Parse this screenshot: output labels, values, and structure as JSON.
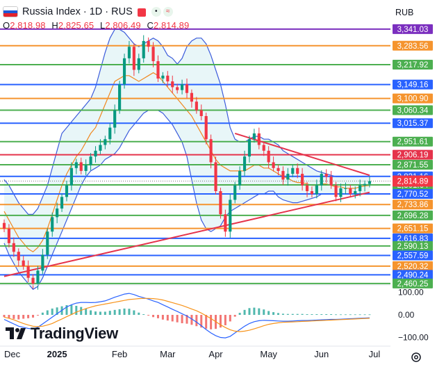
{
  "header": {
    "title": "Russia Index · 1D · RUS",
    "ohlc": [
      {
        "key": "O",
        "value": "2,818.98"
      },
      {
        "key": "H",
        "value": "2,825.65"
      },
      {
        "key": "L",
        "value": "2,806.49"
      },
      {
        "key": "C",
        "value": "2,814.89"
      }
    ],
    "currency": "RUB",
    "flag_colors": [
      "#ffffff",
      "#1c57d6",
      "#e2222c"
    ]
  },
  "branding": {
    "name": "TradingView",
    "settings_icon": "gear-icon"
  },
  "colors": {
    "candle_up": "#089981",
    "candle_down": "#f23645",
    "bb_band": "#3b5bdb",
    "bb_fill": "#e8f6f8",
    "basis": "#f0871e",
    "trendline": "#e5334b",
    "current_price": "#7a7a7a",
    "macd": "#2962ff",
    "signal": "#f7931a"
  },
  "chart_data": [
    {
      "type": "candlestick",
      "title": "Russia Index · 1D · RUS",
      "x_ticks": [
        "Dec",
        "2025",
        "Feb",
        "Mar",
        "Apr",
        "May",
        "Jun",
        "Jul"
      ],
      "y_scale": {
        "min": 2460,
        "max": 3360
      },
      "last_price": 2814.89,
      "levels": [
        {
          "value": 3341.03,
          "label": "3,341.03",
          "color": "#7b2fbf"
        },
        {
          "value": 3283.56,
          "label": "3,283.56",
          "color": "#f5942e"
        },
        {
          "value": 3217.92,
          "label": "3,217.92",
          "color": "#4caf50"
        },
        {
          "value": 3149.16,
          "label": "3,149.16",
          "color": "#2962ff"
        },
        {
          "value": 3100.9,
          "label": "3,100.90",
          "color": "#f5942e"
        },
        {
          "value": 3060.34,
          "label": "3,060.34",
          "color": "#4caf50"
        },
        {
          "value": 3015.37,
          "label": "3,015.37",
          "color": "#2962ff"
        },
        {
          "value": 2951.61,
          "label": "2,951.61",
          "color": "#4caf50"
        },
        {
          "value": 2906.19,
          "label": "2,906.19",
          "color": "#e5334b"
        },
        {
          "value": 2871.55,
          "label": "2,871.55",
          "color": "#4caf50"
        },
        {
          "value": 2831.16,
          "label": "2,831.16",
          "color": "#2962ff"
        },
        {
          "value": 2801.64,
          "label": "2,801.64",
          "color": "#4caf50"
        },
        {
          "value": 2770.52,
          "label": "2,770.52",
          "color": "#2962ff"
        },
        {
          "value": 2733.86,
          "label": "2,733.86",
          "color": "#f5942e"
        },
        {
          "value": 2696.28,
          "label": "2,696.28",
          "color": "#4caf50"
        },
        {
          "value": 2651.15,
          "label": "2,651.15",
          "color": "#f5942e"
        },
        {
          "value": 2616.83,
          "label": "2,616.83",
          "color": "#2962ff"
        },
        {
          "value": 2590.13,
          "label": "2,590.13",
          "color": "#4caf50"
        },
        {
          "value": 2557.59,
          "label": "2,557.59",
          "color": "#2962ff"
        },
        {
          "value": 2520.32,
          "label": "2,520.32",
          "color": "#f5942e"
        },
        {
          "value": 2490.24,
          "label": "2,490.24",
          "color": "#2962ff"
        },
        {
          "value": 2460.25,
          "label": "2,460.25",
          "color": "#4caf50"
        }
      ],
      "close_series": [
        2650,
        2600,
        2570,
        2540,
        2520,
        2480,
        2460,
        2505,
        2560,
        2640,
        2690,
        2720,
        2760,
        2800,
        2860,
        2880,
        2850,
        2870,
        2900,
        2920,
        2940,
        2960,
        3000,
        3060,
        3150,
        3240,
        3280,
        3200,
        3240,
        3300,
        3280,
        3230,
        3170,
        3180,
        3160,
        3140,
        3130,
        3150,
        3120,
        3090,
        3060,
        3040,
        2960,
        2880,
        2780,
        2700,
        2640,
        2750,
        2800,
        2850,
        2900,
        2960,
        2980,
        2940,
        2920,
        2880,
        2860,
        2850,
        2820,
        2840,
        2860,
        2840,
        2800,
        2780,
        2770,
        2800,
        2840,
        2830,
        2800,
        2760,
        2790,
        2790,
        2770,
        2780,
        2800,
        2805,
        2815
      ],
      "series": [
        {
          "name": "bb_upper",
          "values": [
            2820,
            2800,
            2770,
            2740,
            2720,
            2700,
            2700,
            2720,
            2760,
            2800,
            2860,
            2920,
            2980,
            3000,
            3020,
            3040,
            3060,
            3080,
            3100,
            3140,
            3200,
            3260,
            3310,
            3340,
            3340,
            3330,
            3310,
            3290,
            3280,
            3290,
            3300,
            3310,
            3300,
            3280,
            3250,
            3240,
            3220,
            3240,
            3280,
            3300,
            3310,
            3310,
            3290,
            3250,
            3200,
            3150,
            3080,
            3000,
            2960,
            2950,
            2950,
            2960,
            2970,
            2970,
            2960,
            2960,
            2950,
            2940,
            2920,
            2910,
            2900,
            2890,
            2880,
            2870,
            2860,
            2850,
            2845,
            2840,
            2835,
            2830,
            2830,
            2830,
            2830,
            2830,
            2830,
            2830,
            2831
          ]
        },
        {
          "name": "bb_lower",
          "values": [
            2600,
            2560,
            2530,
            2500,
            2480,
            2460,
            2440,
            2450,
            2480,
            2520,
            2560,
            2600,
            2640,
            2680,
            2720,
            2760,
            2800,
            2830,
            2850,
            2860,
            2870,
            2890,
            2900,
            2910,
            2930,
            2960,
            2990,
            3010,
            3030,
            3050,
            3060,
            3060,
            3060,
            3050,
            3030,
            3010,
            2980,
            2950,
            2900,
            2820,
            2740,
            2680,
            2650,
            2640,
            2650,
            2660,
            2690,
            2710,
            2720,
            2730,
            2740,
            2750,
            2760,
            2770,
            2770,
            2780,
            2780,
            2760,
            2750,
            2745,
            2740,
            2740,
            2745,
            2750,
            2755,
            2760,
            2770,
            2770,
            2770,
            2770,
            2770,
            2770,
            2770,
            2770,
            2770,
            2770,
            2770
          ]
        },
        {
          "name": "basis",
          "values": [
            2710,
            2680,
            2650,
            2620,
            2600,
            2580,
            2570,
            2585,
            2610,
            2650,
            2700,
            2750,
            2800,
            2840,
            2870,
            2900,
            2920,
            2950,
            2980,
            3000,
            3040,
            3080,
            3120,
            3160,
            3170,
            3180,
            3180,
            3170,
            3160,
            3170,
            3180,
            3190,
            3180,
            3160,
            3140,
            3120,
            3100,
            3080,
            3060,
            3040,
            3010,
            2980,
            2950,
            2920,
            2890,
            2870,
            2860,
            2850,
            2850,
            2850,
            2850,
            2860,
            2870,
            2870,
            2860,
            2860,
            2850,
            2840,
            2830,
            2825,
            2815,
            2810,
            2810,
            2805,
            2800,
            2800,
            2805,
            2805,
            2800,
            2795,
            2795,
            2790,
            2790,
            2790,
            2795,
            2798,
            2800
          ]
        }
      ],
      "trendlines": [
        {
          "from": {
            "bar": 0,
            "value": 2485
          },
          "to": {
            "bar": 76,
            "value": 2776
          }
        },
        {
          "from": {
            "bar": 48,
            "value": 2980
          },
          "to": {
            "bar": 76,
            "value": 2835
          }
        }
      ]
    },
    {
      "type": "line",
      "title": "",
      "y_ticks": [
        "100.00",
        "0.00",
        "−100.00"
      ],
      "ylim": [
        -120,
        120
      ],
      "series": [
        {
          "name": "macd",
          "values": [
            -20,
            -30,
            -40,
            -50,
            -55,
            -60,
            -62,
            -55,
            -40,
            -25,
            -10,
            5,
            20,
            35,
            45,
            52,
            55,
            55,
            54,
            55,
            58,
            62,
            70,
            78,
            85,
            92,
            95,
            90,
            82,
            76,
            70,
            62,
            55,
            45,
            35,
            25,
            15,
            5,
            -5,
            -18,
            -32,
            -48,
            -65,
            -80,
            -92,
            -100,
            -102,
            -95,
            -80,
            -65,
            -50,
            -38,
            -30,
            -26,
            -24,
            -25,
            -26,
            -27,
            -28,
            -28,
            -27,
            -26,
            -25,
            -25,
            -24,
            -23,
            -22,
            -21,
            -20,
            -20,
            -19,
            -18,
            -17,
            -16,
            -15,
            -14,
            -13
          ]
        },
        {
          "name": "signal",
          "values": [
            -10,
            -15,
            -22,
            -30,
            -38,
            -45,
            -50,
            -52,
            -50,
            -45,
            -38,
            -28,
            -18,
            -8,
            2,
            12,
            20,
            28,
            34,
            40,
            44,
            48,
            52,
            56,
            60,
            64,
            68,
            70,
            72,
            73,
            73,
            72,
            70,
            66,
            60,
            54,
            48,
            42,
            34,
            26,
            18,
            8,
            -4,
            -16,
            -30,
            -44,
            -56,
            -66,
            -72,
            -74,
            -72,
            -68,
            -62,
            -55,
            -48,
            -42,
            -38,
            -35,
            -33,
            -32,
            -31,
            -30,
            -29,
            -28,
            -27,
            -26,
            -25,
            -24,
            -23,
            -22,
            -21,
            -20,
            -19,
            -18,
            -17,
            -16,
            -15
          ]
        }
      ]
    }
  ],
  "x_axis": {
    "labels": [
      {
        "label": "Dec",
        "bar": 0
      },
      {
        "label": "2025",
        "bar": 11
      },
      {
        "label": "Feb",
        "bar": 24
      },
      {
        "label": "Mar",
        "bar": 34
      },
      {
        "label": "Apr",
        "bar": 44
      },
      {
        "label": "May",
        "bar": 55
      },
      {
        "label": "Jun",
        "bar": 66
      },
      {
        "label": "Jul",
        "bar": 77
      }
    ]
  }
}
